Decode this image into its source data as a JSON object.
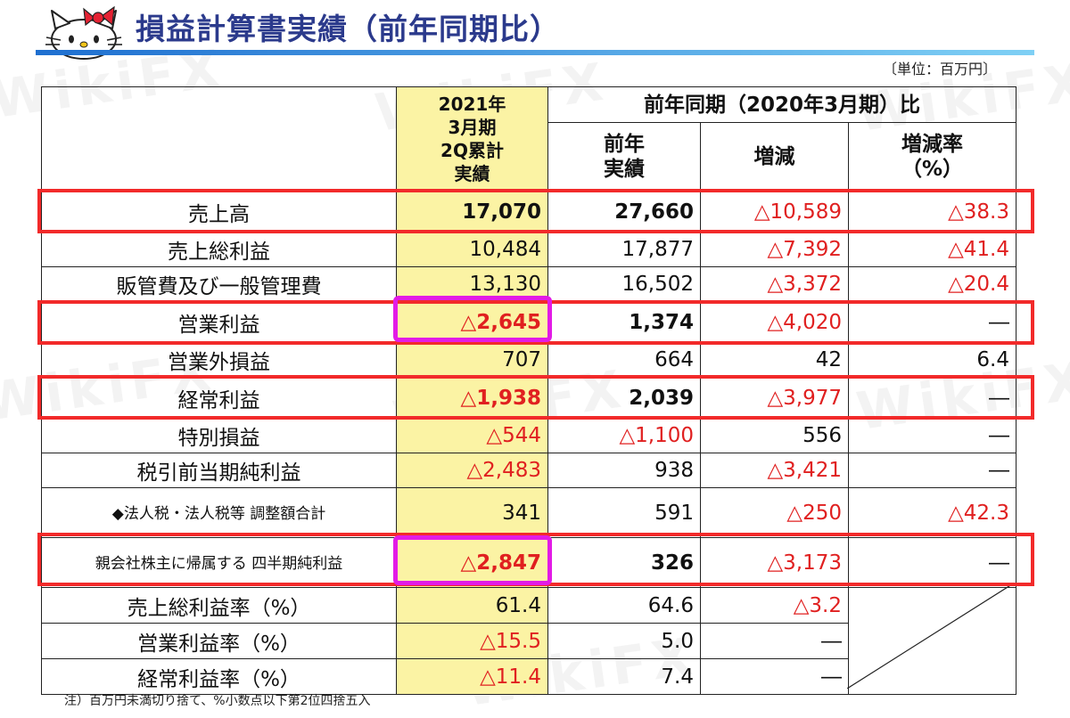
{
  "header": {
    "title": "損益計算書実績（前年同期比）",
    "unit": "〔単位：百万円〕"
  },
  "watermark": "WikiFX",
  "colors": {
    "title": "#2b3a8c",
    "negative": "#e02020",
    "highlight_column": "#fbf3a4",
    "box_red": "#f22a2a",
    "box_magenta": "#e21be6"
  },
  "table": {
    "col_current": "2021年\n3月期\n2Q累計\n実績",
    "group_header": "前年同期（2020年3月期）比",
    "col_prev": "前年\n実績",
    "col_change": "増減",
    "col_rate": "増減率\n（%）",
    "rows": [
      {
        "label": "売上高",
        "current": "17,070",
        "prev": "27,660",
        "change": "△10,589",
        "rate": "△38.3"
      },
      {
        "label": "売上総利益",
        "current": "10,484",
        "prev": "17,877",
        "change": "△7,392",
        "rate": "△41.4"
      },
      {
        "label": "販管費及び一般管理費",
        "current": "13,130",
        "prev": "16,502",
        "change": "△3,372",
        "rate": "△20.4"
      },
      {
        "label": "営業利益",
        "current": "△2,645",
        "prev": "1,374",
        "change": "△4,020",
        "rate": "―"
      },
      {
        "label": "営業外損益",
        "current": "707",
        "prev": "664",
        "change": "42",
        "rate": "6.4"
      },
      {
        "label": "経常利益",
        "current": "△1,938",
        "prev": "2,039",
        "change": "△3,977",
        "rate": "―"
      },
      {
        "label": "特別損益",
        "current": "△544",
        "prev": "△1,100",
        "change": "556",
        "rate": "―"
      },
      {
        "label": "税引前当期純利益",
        "current": "△2,483",
        "prev": "938",
        "change": "△3,421",
        "rate": "―"
      },
      {
        "label": "◆法人税・法人税等\n調整額合計",
        "current": "341",
        "prev": "591",
        "change": "△250",
        "rate": "△42.3"
      },
      {
        "label": "親会社株主に帰属する\n四半期純利益",
        "current": "△2,847",
        "prev": "326",
        "change": "△3,173",
        "rate": "―"
      },
      {
        "label": "売上総利益率（%）",
        "current": "61.4",
        "prev": "64.6",
        "change": "△3.2"
      },
      {
        "label": "営業利益率（%）",
        "current": "△15.5",
        "prev": "5.0",
        "change": "―"
      },
      {
        "label": "経常利益率（%）",
        "current": "△11.4",
        "prev": "7.4",
        "change": "―"
      }
    ]
  },
  "footnote": "注）百万円未満切り捨て、%小数点以下第2位四捨五入"
}
